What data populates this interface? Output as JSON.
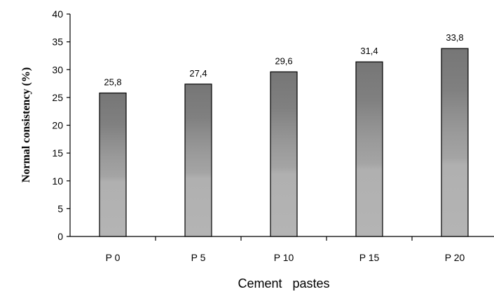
{
  "chart_data": {
    "type": "bar",
    "title": "",
    "xlabel": "Cement   pastes",
    "ylabel": "Normal consistency (%)",
    "categories": [
      "P 0",
      "P 5",
      "P 10",
      "P 15",
      "P 20"
    ],
    "values": [
      25.8,
      27.4,
      29.6,
      31.4,
      33.8
    ],
    "value_labels": [
      "25,8",
      "27,4",
      "29,6",
      "31,4",
      "33,8"
    ],
    "ylim": [
      0,
      40
    ],
    "yticks": [
      0,
      5,
      10,
      15,
      20,
      25,
      30,
      35,
      40
    ],
    "grid": false,
    "legend": "none",
    "bar_gradient": {
      "bottom": "#b4b4b4",
      "band_low": "#a2a2a2",
      "band_mid": "#8e8e8e",
      "top": "#7a7a7a",
      "outline": "#000000"
    }
  }
}
